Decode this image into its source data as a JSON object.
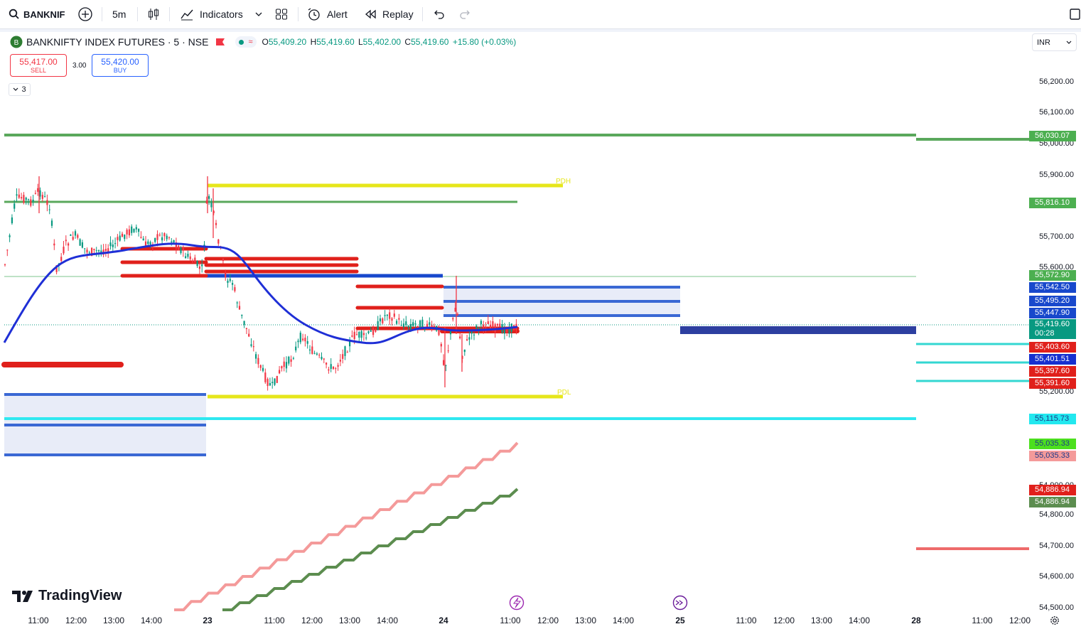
{
  "toolbar": {
    "symbol": "BANKNIF",
    "interval": "5m",
    "indicators_label": "Indicators",
    "alert_label": "Alert",
    "replay_label": "Replay"
  },
  "legend": {
    "title": "BANKNIFTY INDEX FUTURES · 5 · NSE",
    "open_key": "O",
    "open": "55,409.20",
    "high_key": "H",
    "high": "55,419.60",
    "low_key": "L",
    "low": "55,402.00",
    "close_key": "C",
    "close": "55,419.60",
    "change": "+15.80 (+0.03%)",
    "sell_price": "55,417.00",
    "sell_label": "SELL",
    "spread": "3.00",
    "buy_price": "55,420.00",
    "buy_label": "BUY",
    "collapsed_count": "3",
    "currency": "INR"
  },
  "annotations": {
    "pdh": "PDH",
    "pdl": "PDL"
  },
  "brand": "TradingView",
  "colors": {
    "up": "#089981",
    "down": "#f23645",
    "vwap": "#1f2fd6",
    "yellow": "#e6e61a",
    "green_line": "#4caf50",
    "cyan": "#20e3e3"
  },
  "y_ticks": [
    "56,200.00",
    "56,100.00",
    "56,000.00",
    "55,900.00",
    "55,700.00",
    "55,600.00",
    "55,200.00",
    "54,900.00",
    "54,800.00",
    "54,700.00",
    "54,600.00",
    "54,500.00"
  ],
  "price_badges": [
    {
      "text": "56,030.07",
      "bg": "#4caf50",
      "fg": "#ffffff"
    },
    {
      "text": "55,816.10",
      "bg": "#4caf50",
      "fg": "#ffffff"
    },
    {
      "text": "55,572.90",
      "bg": "#4caf50",
      "fg": "#ffffff"
    },
    {
      "text": "55,542.50",
      "bg": "#1848cc",
      "fg": "#ffffff"
    },
    {
      "text": "55,495.20",
      "bg": "#1848cc",
      "fg": "#ffffff"
    },
    {
      "text": "55,447.90",
      "bg": "#1848cc",
      "fg": "#ffffff"
    },
    {
      "text": "55,403.60",
      "bg": "#e0201b",
      "fg": "#ffffff"
    },
    {
      "text": "55,401.51",
      "bg": "#1630d0",
      "fg": "#ffffff"
    },
    {
      "text": "55,397.60",
      "bg": "#e0201b",
      "fg": "#ffffff"
    },
    {
      "text": "55,391.60",
      "bg": "#e0201b",
      "fg": "#ffffff"
    },
    {
      "text": "55,115.73",
      "bg": "#22e8ef",
      "fg": "#1e3a8a"
    },
    {
      "text": "55,035.33",
      "bg": "#4ce01e",
      "fg": "#1e3a8a"
    },
    {
      "text": "55,035.33",
      "bg": "#f49a9a",
      "fg": "#1e3a8a"
    },
    {
      "text": "54,886.94",
      "bg": "#e0201b",
      "fg": "#ffffff"
    },
    {
      "text": "54,886.94",
      "bg": "#5c8d4f",
      "fg": "#ffffff"
    }
  ],
  "last_price": {
    "text": "55,419.60",
    "countdown": "00:28",
    "bg": "#089981"
  },
  "x_ticks": [
    {
      "t": "11:00"
    },
    {
      "t": "12:00"
    },
    {
      "t": "13:00"
    },
    {
      "t": "14:00"
    },
    {
      "t": "23",
      "bold": true
    },
    {
      "t": "11:00"
    },
    {
      "t": "12:00"
    },
    {
      "t": "13:00"
    },
    {
      "t": "14:00"
    },
    {
      "t": "24",
      "bold": true
    },
    {
      "t": "11:00"
    },
    {
      "t": "12:00"
    },
    {
      "t": "13:00"
    },
    {
      "t": "14:00"
    },
    {
      "t": "25",
      "bold": true
    },
    {
      "t": "11:00"
    },
    {
      "t": "12:00"
    },
    {
      "t": "13:00"
    },
    {
      "t": "14:00"
    },
    {
      "t": "28",
      "bold": true
    },
    {
      "t": "11:00"
    },
    {
      "t": "12:00"
    }
  ]
}
